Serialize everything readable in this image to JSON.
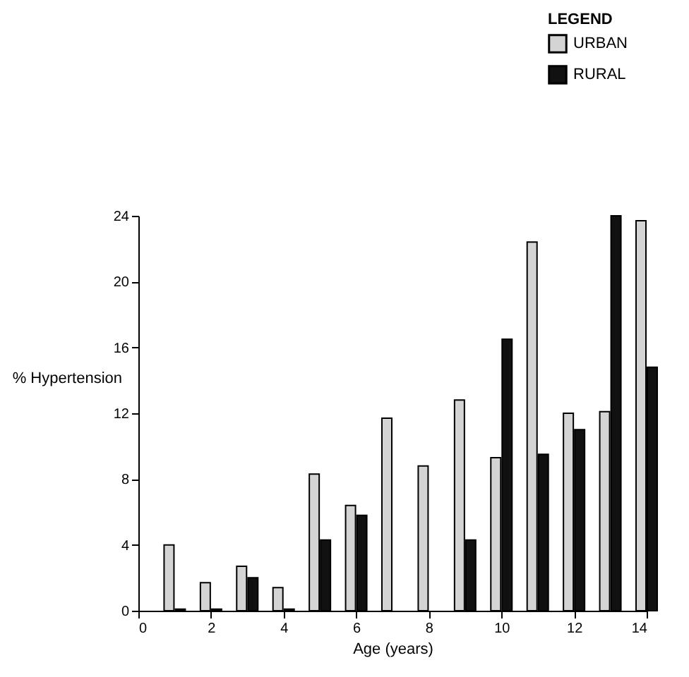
{
  "chart_data": {
    "type": "bar",
    "xlabel": "Age (years)",
    "ylabel": "% Hypertension",
    "legend_title": "LEGEND",
    "x": [
      1,
      2,
      3,
      4,
      5,
      6,
      7,
      8,
      9,
      10,
      11,
      12,
      13,
      14
    ],
    "series": [
      {
        "name": "URBAN",
        "color": "#d4d4d4",
        "values": [
          4.0,
          1.7,
          2.7,
          1.4,
          8.3,
          6.4,
          11.7,
          8.8,
          12.8,
          9.3,
          22.4,
          12.0,
          12.1,
          23.7
        ]
      },
      {
        "name": "RURAL",
        "color": "#111111",
        "values": [
          0.1,
          0.1,
          2.0,
          0.1,
          4.3,
          5.8,
          null,
          null,
          4.3,
          16.5,
          9.5,
          11.0,
          24.0,
          14.8
        ]
      }
    ],
    "xlim": [
      0,
      14
    ],
    "xticks": [
      0,
      2,
      4,
      6,
      8,
      10,
      12,
      14
    ],
    "ylim": [
      0,
      24
    ],
    "yticks": [
      0,
      4,
      8,
      12,
      16,
      20,
      24
    ],
    "grid": false,
    "legend": "top right"
  }
}
